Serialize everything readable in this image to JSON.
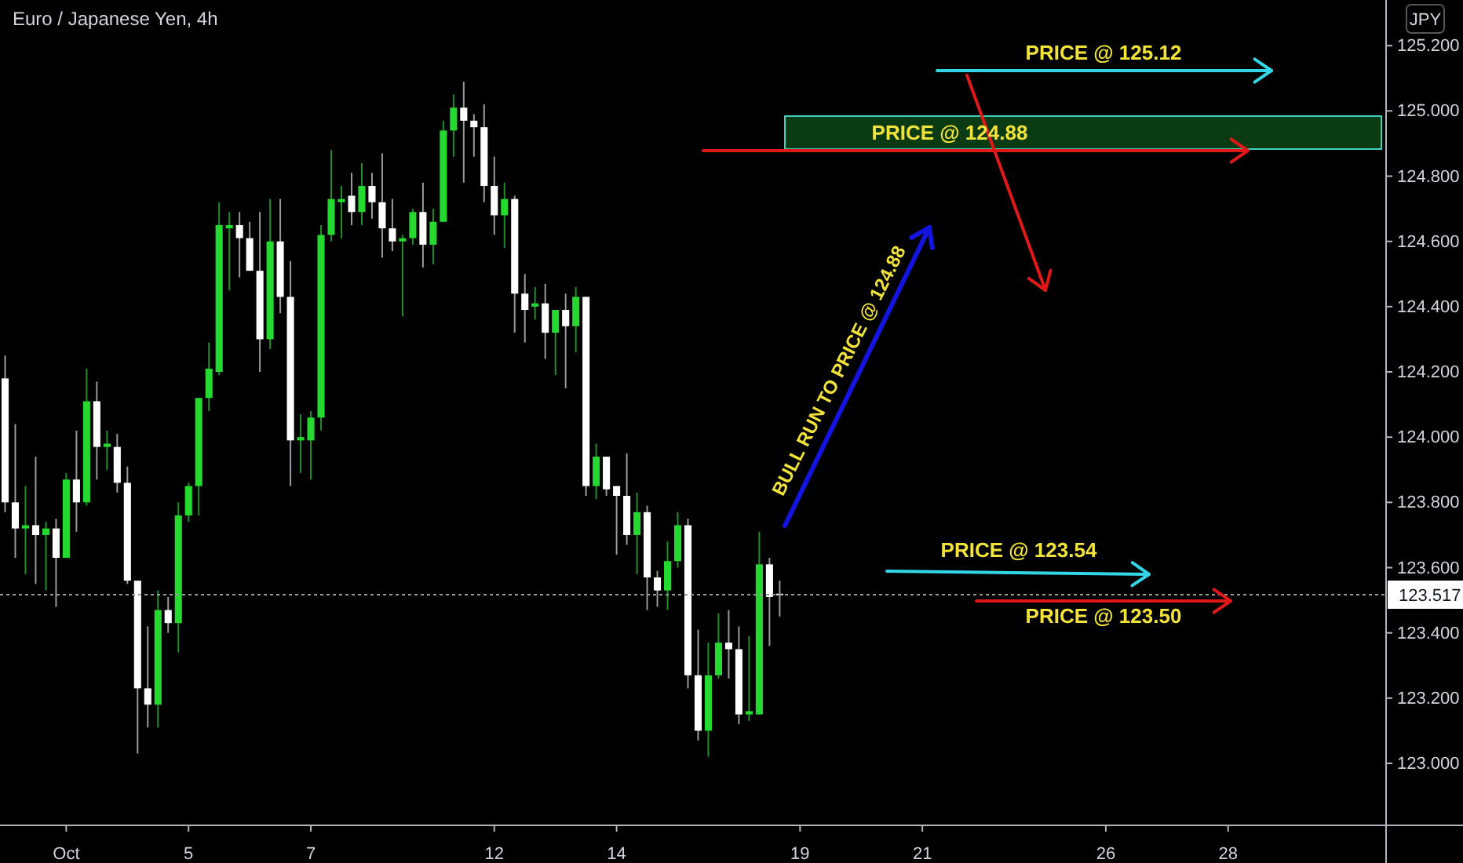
{
  "chart_data": {
    "type": "candlestick",
    "title": "Euro / Japanese Yen, 4h",
    "categories": [
      null,
      null,
      null,
      null,
      null,
      null,
      "Oct",
      null,
      null,
      null,
      null,
      null,
      null,
      null,
      null,
      null,
      null,
      null,
      "5",
      null,
      null,
      null,
      null,
      null,
      null,
      null,
      null,
      null,
      null,
      null,
      "7",
      null,
      null,
      null,
      null,
      null,
      null,
      null,
      null,
      null,
      null,
      null,
      null,
      null,
      null,
      null,
      null,
      null,
      "12",
      null,
      null,
      null,
      null,
      null,
      null,
      null,
      null,
      null,
      null,
      null,
      "14",
      null,
      null,
      null,
      null,
      null,
      null,
      null,
      null,
      null,
      null,
      null,
      null,
      null,
      null,
      null,
      null,
      null,
      "19",
      null,
      null,
      null,
      null,
      null,
      null,
      null,
      null,
      null,
      null,
      null,
      "21",
      null,
      null,
      null,
      null,
      null,
      null,
      null,
      null,
      null,
      null,
      null,
      null,
      null,
      null,
      null,
      null,
      null,
      "26",
      null,
      null,
      null,
      null,
      null,
      null,
      null,
      null,
      null,
      null,
      null,
      "28",
      null,
      null,
      null,
      null,
      null,
      null,
      null,
      null,
      null,
      null,
      null,
      null,
      null,
      null,
      null
    ],
    "ohlc": [
      [
        124.18,
        124.25,
        123.77,
        123.8
      ],
      [
        123.8,
        124.04,
        123.63,
        123.72
      ],
      [
        123.72,
        123.85,
        123.58,
        123.73
      ],
      [
        123.73,
        123.94,
        123.55,
        123.7
      ],
      [
        123.7,
        123.74,
        123.53,
        123.72
      ],
      [
        123.72,
        123.75,
        123.48,
        123.63
      ],
      [
        123.63,
        123.89,
        123.63,
        123.87
      ],
      [
        123.87,
        124.02,
        123.71,
        123.8
      ],
      [
        123.8,
        124.21,
        123.79,
        124.11
      ],
      [
        124.11,
        124.17,
        123.87,
        123.97
      ],
      [
        123.97,
        124.02,
        123.9,
        123.98
      ],
      [
        123.97,
        124.01,
        123.83,
        123.86
      ],
      [
        123.86,
        123.91,
        123.55,
        123.56
      ],
      [
        123.56,
        123.56,
        123.03,
        123.23
      ],
      [
        123.23,
        123.42,
        123.11,
        123.18
      ],
      [
        123.18,
        123.53,
        123.11,
        123.47
      ],
      [
        123.47,
        123.51,
        123.4,
        123.43
      ],
      [
        123.43,
        123.8,
        123.34,
        123.76
      ],
      [
        123.76,
        123.86,
        123.74,
        123.85
      ],
      [
        123.85,
        124.12,
        123.76,
        124.12
      ],
      [
        124.12,
        124.29,
        124.08,
        124.21
      ],
      [
        124.2,
        124.72,
        124.19,
        124.65
      ],
      [
        124.64,
        124.69,
        124.45,
        124.65
      ],
      [
        124.65,
        124.69,
        124.49,
        124.61
      ],
      [
        124.61,
        124.66,
        124.51,
        124.51
      ],
      [
        124.51,
        124.69,
        124.2,
        124.3
      ],
      [
        124.3,
        124.73,
        124.27,
        124.6
      ],
      [
        124.6,
        124.73,
        124.38,
        124.43
      ],
      [
        124.43,
        124.54,
        123.85,
        123.99
      ],
      [
        123.99,
        124.07,
        123.89,
        124.0
      ],
      [
        123.99,
        124.08,
        123.87,
        124.06
      ],
      [
        124.06,
        124.65,
        124.02,
        124.62
      ],
      [
        124.62,
        124.88,
        124.6,
        124.73
      ],
      [
        124.72,
        124.77,
        124.61,
        124.73
      ],
      [
        124.74,
        124.81,
        124.65,
        124.69
      ],
      [
        124.69,
        124.84,
        124.65,
        124.77
      ],
      [
        124.77,
        124.81,
        124.67,
        124.72
      ],
      [
        124.72,
        124.87,
        124.55,
        124.64
      ],
      [
        124.64,
        124.73,
        124.57,
        124.6
      ],
      [
        124.6,
        124.62,
        124.37,
        124.61
      ],
      [
        124.61,
        124.7,
        124.59,
        124.69
      ],
      [
        124.69,
        124.78,
        124.52,
        124.59
      ],
      [
        124.59,
        124.7,
        124.53,
        124.66
      ],
      [
        124.66,
        124.97,
        124.66,
        124.94
      ],
      [
        124.94,
        125.05,
        124.86,
        125.01
      ],
      [
        125.01,
        125.09,
        124.78,
        124.97
      ],
      [
        124.97,
        124.99,
        124.86,
        124.95
      ],
      [
        124.95,
        125.02,
        124.72,
        124.77
      ],
      [
        124.77,
        124.86,
        124.62,
        124.68
      ],
      [
        124.68,
        124.78,
        124.58,
        124.73
      ],
      [
        124.73,
        124.74,
        124.32,
        124.44
      ],
      [
        124.44,
        124.5,
        124.29,
        124.39
      ],
      [
        124.4,
        124.46,
        124.36,
        124.41
      ],
      [
        124.41,
        124.47,
        124.24,
        124.32
      ],
      [
        124.32,
        124.39,
        124.19,
        124.39
      ],
      [
        124.39,
        124.44,
        124.15,
        124.34
      ],
      [
        124.34,
        124.46,
        124.26,
        124.43
      ],
      [
        124.43,
        124.43,
        123.82,
        123.85
      ],
      [
        123.85,
        123.98,
        123.81,
        123.94
      ],
      [
        123.94,
        123.94,
        123.82,
        123.84
      ],
      [
        123.85,
        123.85,
        123.64,
        123.82
      ],
      [
        123.82,
        123.95,
        123.67,
        123.7
      ],
      [
        123.7,
        123.83,
        123.58,
        123.77
      ],
      [
        123.77,
        123.79,
        123.47,
        123.57
      ],
      [
        123.57,
        123.59,
        123.48,
        123.53
      ],
      [
        123.53,
        123.68,
        123.47,
        123.62
      ],
      [
        123.62,
        123.77,
        123.6,
        123.73
      ],
      [
        123.73,
        123.75,
        123.23,
        123.27
      ],
      [
        123.27,
        123.41,
        123.07,
        123.1
      ],
      [
        123.1,
        123.37,
        123.02,
        123.27
      ],
      [
        123.27,
        123.46,
        123.26,
        123.37
      ],
      [
        123.37,
        123.47,
        123.26,
        123.35
      ],
      [
        123.35,
        123.42,
        123.12,
        123.15
      ],
      [
        123.15,
        123.39,
        123.13,
        123.16
      ],
      [
        123.15,
        123.71,
        123.15,
        123.61
      ],
      [
        123.61,
        123.63,
        123.36,
        123.51
      ],
      [
        123.52,
        123.56,
        123.45,
        123.517
      ],
      null,
      null,
      null,
      null,
      null,
      null,
      null,
      null,
      null,
      null,
      null,
      null,
      null,
      null,
      null,
      null,
      null,
      null,
      null,
      null,
      null,
      null,
      null,
      null,
      null,
      null,
      null,
      null,
      null,
      null,
      null,
      null,
      null,
      null,
      null,
      null,
      null,
      null,
      null,
      null,
      null,
      null,
      null,
      null,
      null,
      null,
      null,
      null,
      null,
      null,
      null,
      null,
      null,
      null,
      null,
      null,
      null,
      null,
      null
    ],
    "ylim": [
      122.81,
      125.34
    ],
    "yticks": [
      {
        "value": 123.0,
        "label": "123.000"
      },
      {
        "value": 123.2,
        "label": "123.200"
      },
      {
        "value": 123.4,
        "label": "123.400"
      },
      {
        "value": 123.6,
        "label": "123.600"
      },
      {
        "value": 123.8,
        "label": "123.800"
      },
      {
        "value": 124.0,
        "label": "124.000"
      },
      {
        "value": 124.2,
        "label": "124.200"
      },
      {
        "value": 124.4,
        "label": "124.400"
      },
      {
        "value": 124.6,
        "label": "124.600"
      },
      {
        "value": 124.8,
        "label": "124.800"
      },
      {
        "value": 125.0,
        "label": "125.000"
      },
      {
        "value": 125.2,
        "label": "125.200"
      }
    ],
    "ref_lines": [
      {
        "axis": "y",
        "value": 123.517,
        "label": "123.517",
        "color": "#9a9a9a",
        "line_style": "dotted"
      }
    ],
    "annotations": [
      "PRICE @ 125.12",
      "PRICE @ 124.88",
      "BULL RUN TO PRICE @ 124.88",
      "PRICE @ 123.54",
      "PRICE @ 123.50",
      "JPY"
    ],
    "grid": false
  }
}
